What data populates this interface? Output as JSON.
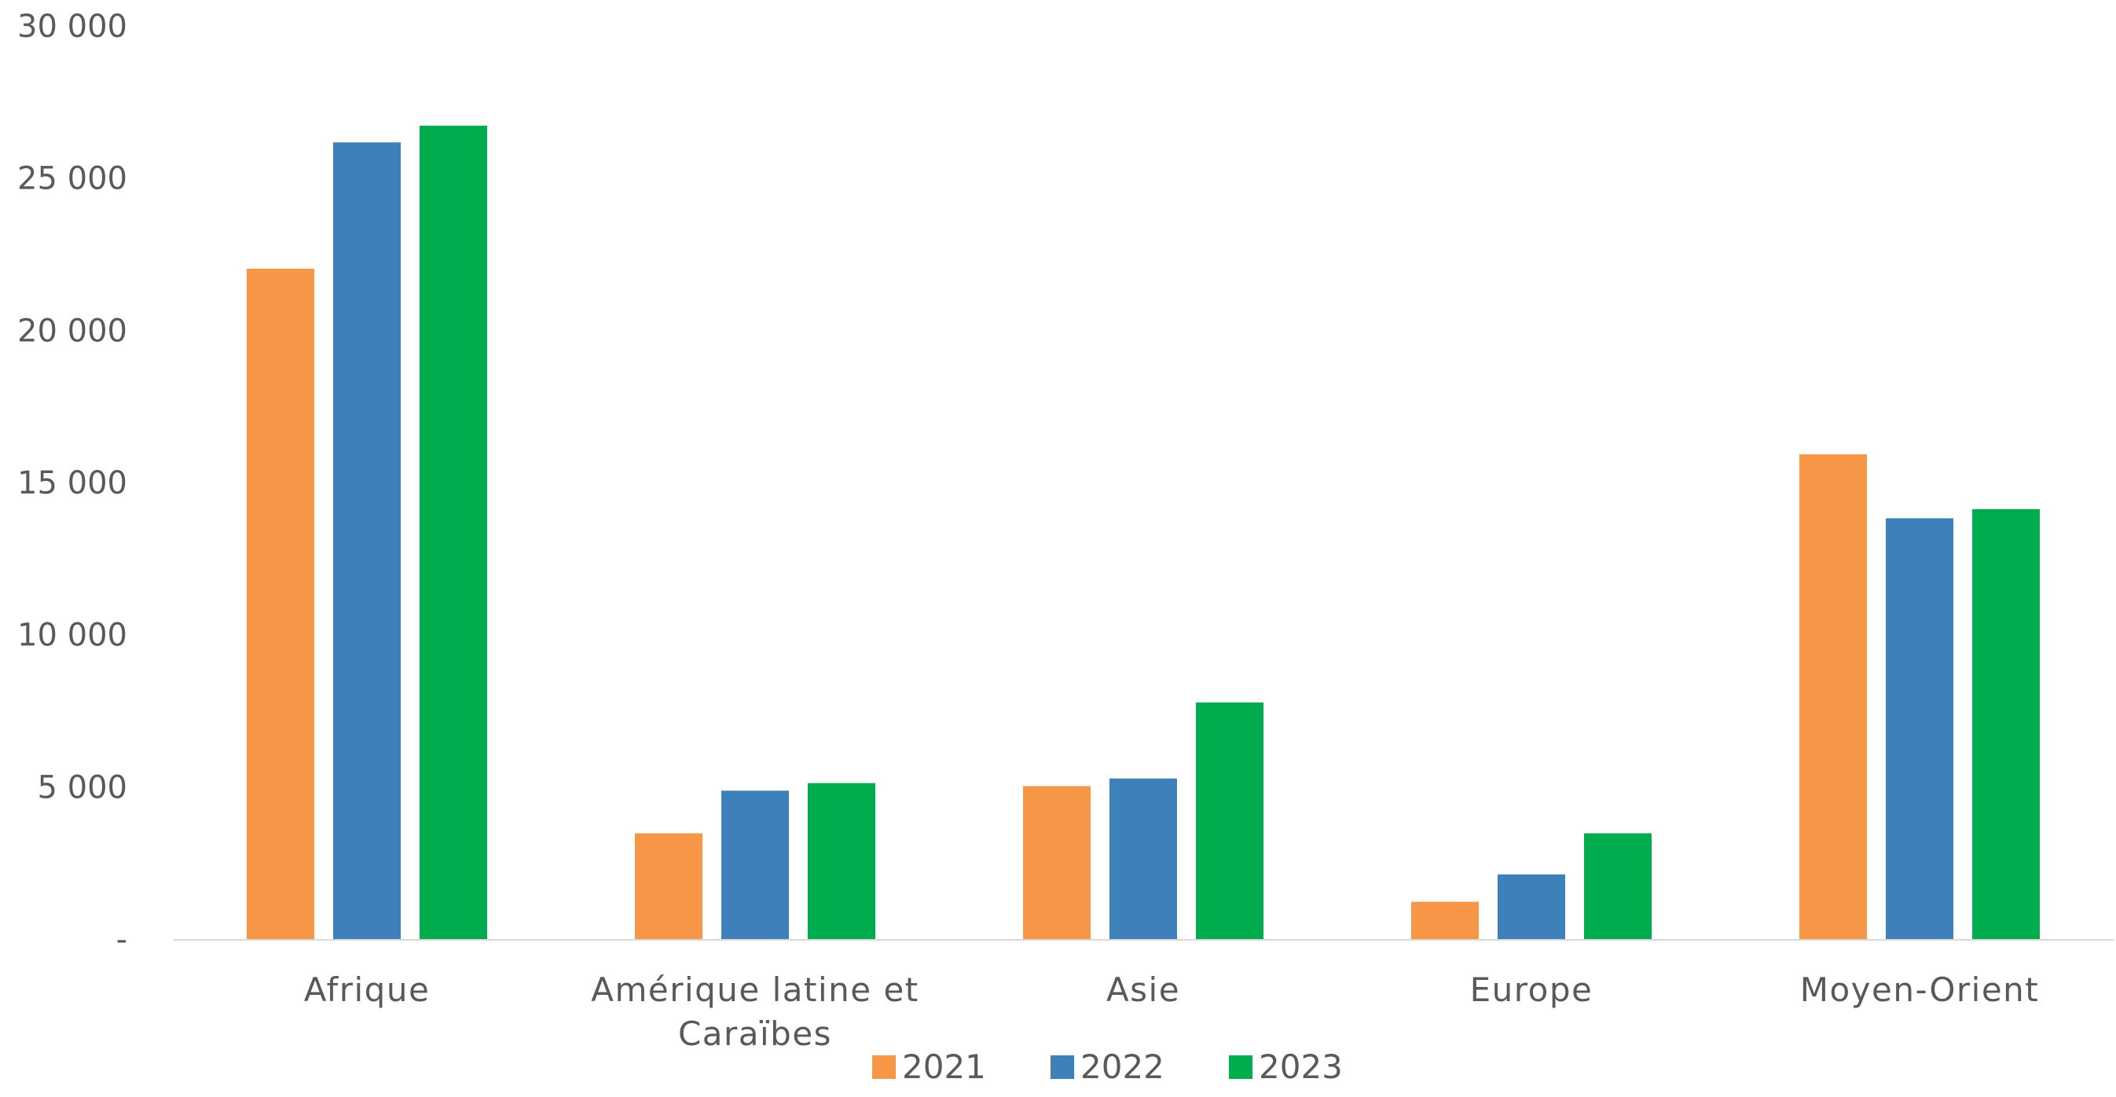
{
  "chart_data": {
    "type": "bar",
    "categories": [
      [
        "Afrique"
      ],
      [
        "Amérique latine et",
        "Caraïbes"
      ],
      [
        "Asie"
      ],
      [
        "Europe"
      ],
      [
        "Moyen-Orient"
      ]
    ],
    "series": [
      {
        "name": "2021",
        "color": "#F79646",
        "values": [
          22050,
          3500,
          5050,
          1250,
          15950
        ]
      },
      {
        "name": "2022",
        "color": "#3E81BA",
        "values": [
          26200,
          4900,
          5300,
          2150,
          13850
        ]
      },
      {
        "name": "2023",
        "color": "#00AC4E",
        "values": [
          26750,
          5150,
          7800,
          3500,
          14150
        ]
      }
    ],
    "ylim": [
      0,
      30000
    ],
    "y_ticks": [
      {
        "value": 0,
        "label": "-"
      },
      {
        "value": 5000,
        "label": "5 000"
      },
      {
        "value": 10000,
        "label": "10 000"
      },
      {
        "value": 15000,
        "label": "15 000"
      },
      {
        "value": 20000,
        "label": "20 000"
      },
      {
        "value": 25000,
        "label": "25 000"
      },
      {
        "value": 30000,
        "label": "30 000"
      }
    ],
    "grid": false,
    "legend_position": "bottom",
    "axis_color": "#D9D9D9",
    "text_color": "#595959"
  }
}
